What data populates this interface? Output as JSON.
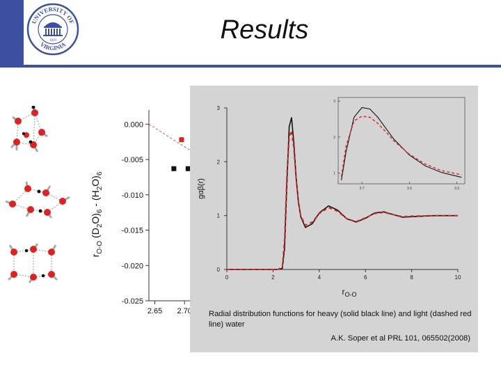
{
  "slide": {
    "title": "Results",
    "colors": {
      "accent": "#3c4fa0",
      "panel": "#d4d4d4",
      "red": "#dd2222",
      "black": "#111111"
    }
  },
  "logo": {
    "top_text": "UNIVERSITY OF",
    "bottom_text": "VIRGINIA",
    "year": "1819",
    "icon": "rotunda-icon"
  },
  "figure_left": {
    "molecule_icons": [
      "water-hexamer-cage-icon",
      "water-hexamer-book-icon",
      "water-hexamer-prism-icon"
    ],
    "chart_note": "partially covered by the right panel"
  },
  "chart_data": [
    {
      "type": "scatter",
      "title": "",
      "xlabel": "",
      "ylabel_parts": {
        "r1": "r",
        "sub1": "O-O",
        "a": " (D",
        "s1": "2",
        "b": "O)",
        "s2": "6",
        "c": " - (H",
        "s3": "2",
        "d": "O)",
        "s4": "6"
      },
      "x_ticks_visible": [
        "2.65",
        "2.70"
      ],
      "xlim": [
        2.64,
        2.715
      ],
      "ylim": [
        -0.025,
        0.002
      ],
      "y_ticks": [
        0.0,
        -0.005,
        -0.01,
        -0.015,
        -0.02,
        -0.025
      ],
      "y_tick_labels": [
        "0.000",
        "-0.005",
        "-0.010",
        "-0.015",
        "-0.020",
        "-0.025"
      ],
      "series": [
        {
          "color": "#111111",
          "marker": "square",
          "points": [
            [
              2.682,
              -0.0063
            ],
            [
              2.706,
              -0.0063
            ]
          ]
        },
        {
          "color": "#dd2222",
          "marker": "square",
          "points": [
            [
              2.695,
              -0.0022
            ]
          ]
        }
      ],
      "trend_line": {
        "color": "#dd4444",
        "style": "dashed",
        "from": [
          2.64,
          0.0
        ],
        "to": [
          2.715,
          -0.004
        ]
      }
    },
    {
      "type": "line",
      "title": "",
      "xlabel": "r",
      "xlabel_sub": "O-O",
      "ylabel": "gαβ(r)",
      "xlim": [
        0,
        10
      ],
      "ylim": [
        0,
        3
      ],
      "x_ticks": [
        0,
        2,
        4,
        6,
        8,
        10
      ],
      "y_ticks": [
        0,
        1,
        2,
        3
      ],
      "series": [
        {
          "style": "solid",
          "color": "#111111",
          "x": [
            0,
            2.2,
            2.4,
            2.5,
            2.6,
            2.7,
            2.8,
            2.9,
            3.0,
            3.1,
            3.2,
            3.4,
            3.7,
            4.0,
            4.4,
            4.8,
            5.2,
            5.6,
            6.0,
            6.4,
            6.8,
            7.2,
            7.6,
            8.0,
            9.0,
            10.0
          ],
          "y": [
            0,
            0,
            0.02,
            0.4,
            1.6,
            2.65,
            2.82,
            2.35,
            1.7,
            1.25,
            0.98,
            0.78,
            0.85,
            1.05,
            1.18,
            1.1,
            0.94,
            0.88,
            0.95,
            1.05,
            1.07,
            1.02,
            0.97,
            0.98,
            1.0,
            1.0
          ]
        },
        {
          "style": "dashed",
          "color": "#dd2222",
          "x": [
            0,
            2.2,
            2.4,
            2.5,
            2.6,
            2.7,
            2.8,
            2.9,
            3.0,
            3.1,
            3.2,
            3.4,
            3.7,
            4.0,
            4.4,
            4.8,
            5.2,
            5.6,
            6.0,
            6.4,
            6.8,
            7.2,
            7.6,
            8.0,
            9.0,
            10.0
          ],
          "y": [
            0,
            0,
            0.04,
            0.55,
            1.75,
            2.45,
            2.58,
            2.25,
            1.68,
            1.25,
            1.0,
            0.82,
            0.88,
            1.04,
            1.15,
            1.08,
            0.94,
            0.89,
            0.96,
            1.04,
            1.06,
            1.02,
            0.98,
            0.99,
            1.0,
            1.0
          ]
        }
      ],
      "inset": {
        "xlim": [
          2.55,
          3.35
        ],
        "ylim": [
          0.7,
          3.1
        ],
        "x_ticks": [
          2.7,
          3.0,
          3.3
        ],
        "x_tick_labels": [
          "2.7",
          "3.0",
          "3.3"
        ],
        "y_ticks": [
          1,
          2,
          3
        ],
        "y_tick_labels": [
          "1",
          "2",
          "3"
        ],
        "series": [
          {
            "style": "solid",
            "color": "#111111",
            "x": [
              2.57,
              2.6,
              2.65,
              2.7,
              2.75,
              2.8,
              2.85,
              2.9,
              3.0,
              3.1,
              3.2,
              3.33
            ],
            "y": [
              0.8,
              1.6,
              2.55,
              2.82,
              2.78,
              2.55,
              2.25,
              1.95,
              1.5,
              1.2,
              1.02,
              0.88
            ]
          },
          {
            "style": "dashed",
            "color": "#dd2222",
            "x": [
              2.57,
              2.6,
              2.65,
              2.7,
              2.75,
              2.8,
              2.85,
              2.9,
              3.0,
              3.1,
              3.2,
              3.33
            ],
            "y": [
              0.9,
              1.75,
              2.45,
              2.58,
              2.55,
              2.38,
              2.15,
              1.9,
              1.52,
              1.25,
              1.07,
              0.95
            ]
          }
        ]
      }
    }
  ],
  "caption": {
    "text": "Radial distribution functions for heavy (solid black line) and light (dashed red line) water",
    "citation": "A.K. Soper et al PRL 101, 065502(2008)"
  }
}
